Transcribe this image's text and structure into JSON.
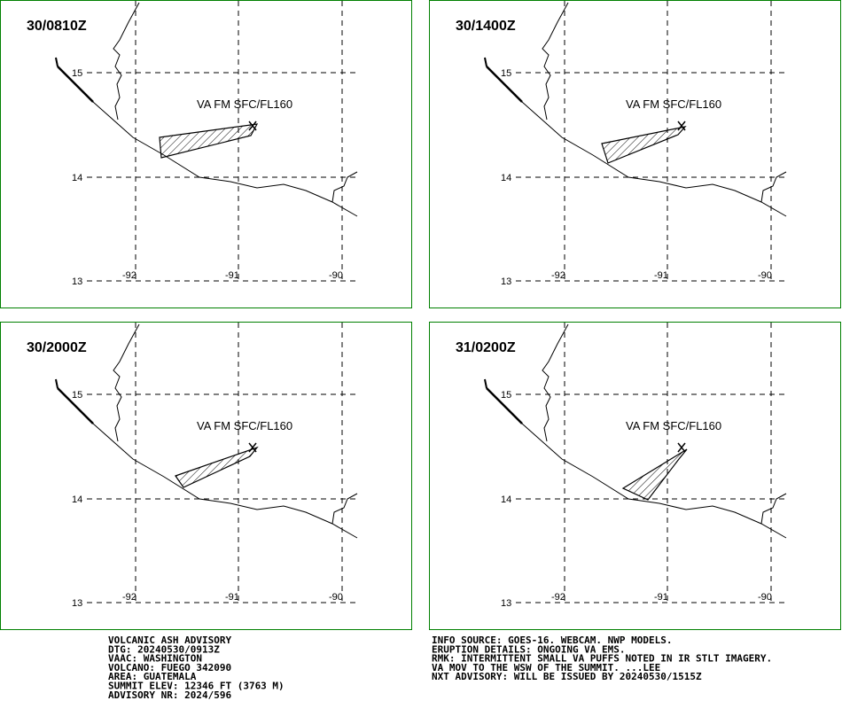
{
  "panels": [
    {
      "time": "30/0810Z",
      "label": "VA FM SFC/FL160",
      "lat_labels": [
        "15",
        "14",
        "13"
      ],
      "lon_labels": [
        "-92",
        "-91",
        "-90"
      ]
    },
    {
      "time": "30/1400Z",
      "label": "VA FM SFC/FL160",
      "lat_labels": [
        "15",
        "14",
        "13"
      ],
      "lon_labels": [
        "-92",
        "-91",
        "-90"
      ]
    },
    {
      "time": "30/2000Z",
      "label": "VA FM SFC/FL160",
      "lat_labels": [
        "15",
        "14",
        "13"
      ],
      "lon_labels": [
        "-92",
        "-91",
        "-90"
      ]
    },
    {
      "time": "31/0200Z",
      "label": "VA FM SFC/FL160",
      "lat_labels": [
        "15",
        "14",
        "13"
      ],
      "lon_labels": [
        "-92",
        "-91",
        "-90"
      ]
    }
  ],
  "advisory_left": [
    "VOLCANIC ASH ADVISORY",
    "DTG: 20240530/0913Z",
    "VAAC: WASHINGTON",
    "VOLCANO: FUEGO 342090",
    "AREA: GUATEMALA",
    "SUMMIT ELEV: 12346 FT (3763 M)",
    "ADVISORY NR: 2024/596"
  ],
  "advisory_right": [
    "INFO SOURCE: GOES-16. WEBCAM. NWP MODELS.",
    "ERUPTION DETAILS: ONGOING VA EMS.",
    "RMK: INTERMITTENT SMALL VA PUFFS NOTED IN IR STLT IMAGERY.",
    "VA MOV TO THE WSW OF THE SUMMIT. ...LEE",
    "NXT ADVISORY: WILL BE ISSUED BY 20240530/1515Z"
  ]
}
